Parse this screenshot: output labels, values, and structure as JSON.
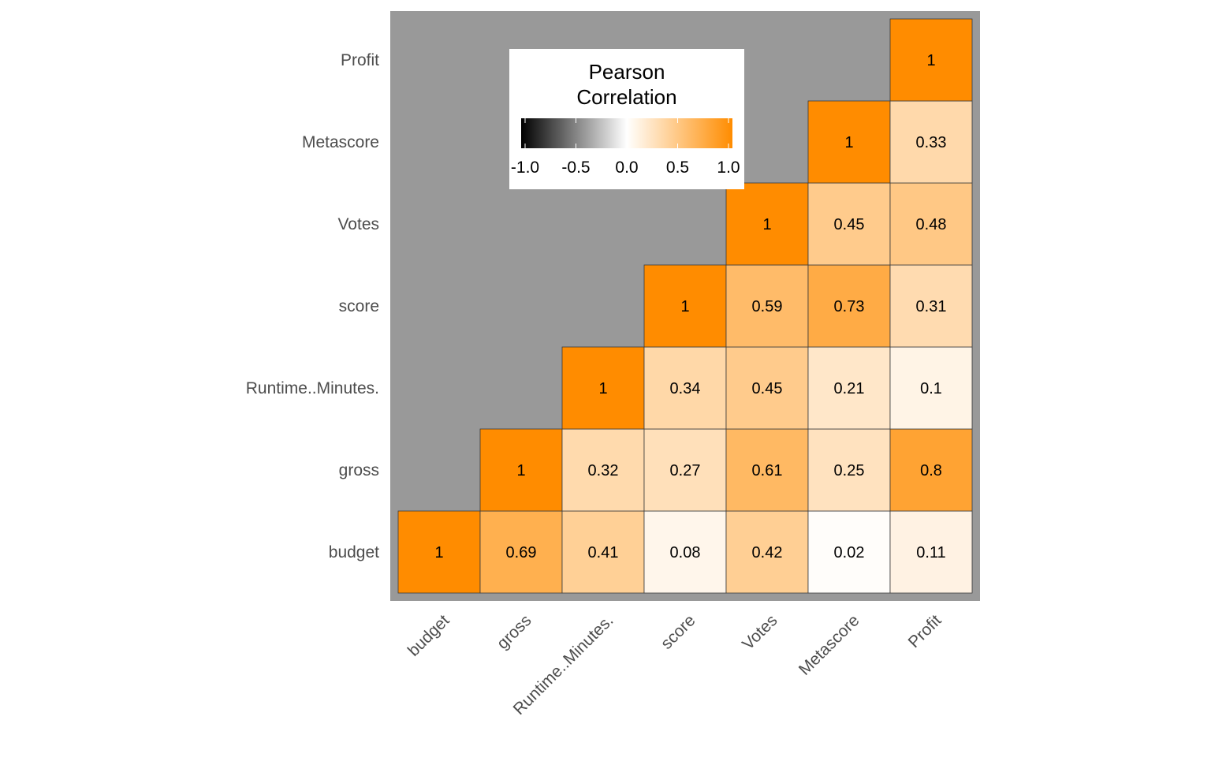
{
  "chart_data": {
    "type": "heatmap",
    "title": "",
    "xlabel": "",
    "ylabel": "",
    "variables": [
      "budget",
      "gross",
      "Runtime..Minutes.",
      "score",
      "Votes",
      "Metascore",
      "Profit"
    ],
    "cells": [
      {
        "x": "budget",
        "y": "budget",
        "value": 1,
        "label": "1"
      },
      {
        "x": "gross",
        "y": "budget",
        "value": 0.69,
        "label": "0.69"
      },
      {
        "x": "Runtime..Minutes.",
        "y": "budget",
        "value": 0.41,
        "label": "0.41"
      },
      {
        "x": "score",
        "y": "budget",
        "value": 0.08,
        "label": "0.08"
      },
      {
        "x": "Votes",
        "y": "budget",
        "value": 0.42,
        "label": "0.42"
      },
      {
        "x": "Metascore",
        "y": "budget",
        "value": 0.02,
        "label": "0.02"
      },
      {
        "x": "Profit",
        "y": "budget",
        "value": 0.11,
        "label": "0.11"
      },
      {
        "x": "gross",
        "y": "gross",
        "value": 1,
        "label": "1"
      },
      {
        "x": "Runtime..Minutes.",
        "y": "gross",
        "value": 0.32,
        "label": "0.32"
      },
      {
        "x": "score",
        "y": "gross",
        "value": 0.27,
        "label": "0.27"
      },
      {
        "x": "Votes",
        "y": "gross",
        "value": 0.61,
        "label": "0.61"
      },
      {
        "x": "Metascore",
        "y": "gross",
        "value": 0.25,
        "label": "0.25"
      },
      {
        "x": "Profit",
        "y": "gross",
        "value": 0.8,
        "label": "0.8"
      },
      {
        "x": "Runtime..Minutes.",
        "y": "Runtime..Minutes.",
        "value": 1,
        "label": "1"
      },
      {
        "x": "score",
        "y": "Runtime..Minutes.",
        "value": 0.34,
        "label": "0.34"
      },
      {
        "x": "Votes",
        "y": "Runtime..Minutes.",
        "value": 0.45,
        "label": "0.45"
      },
      {
        "x": "Metascore",
        "y": "Runtime..Minutes.",
        "value": 0.21,
        "label": "0.21"
      },
      {
        "x": "Profit",
        "y": "Runtime..Minutes.",
        "value": 0.1,
        "label": "0.1"
      },
      {
        "x": "score",
        "y": "score",
        "value": 1,
        "label": "1"
      },
      {
        "x": "Votes",
        "y": "score",
        "value": 0.59,
        "label": "0.59"
      },
      {
        "x": "Metascore",
        "y": "score",
        "value": 0.73,
        "label": "0.73"
      },
      {
        "x": "Profit",
        "y": "score",
        "value": 0.31,
        "label": "0.31"
      },
      {
        "x": "Votes",
        "y": "Votes",
        "value": 1,
        "label": "1"
      },
      {
        "x": "Metascore",
        "y": "Votes",
        "value": 0.45,
        "label": "0.45"
      },
      {
        "x": "Profit",
        "y": "Votes",
        "value": 0.48,
        "label": "0.48"
      },
      {
        "x": "Metascore",
        "y": "Metascore",
        "value": 1,
        "label": "1"
      },
      {
        "x": "Profit",
        "y": "Metascore",
        "value": 0.33,
        "label": "0.33"
      },
      {
        "x": "Profit",
        "y": "Profit",
        "value": 1,
        "label": "1"
      }
    ],
    "color_scale": {
      "low": "#000000",
      "mid": "#ffffff",
      "high": "#ff8c00",
      "limits": [
        -1,
        1
      ]
    },
    "panel_background": "#999999",
    "legend": {
      "title_lines": [
        "Pearson",
        "Correlation"
      ],
      "placement": "top-left",
      "ticks": [
        -1,
        -0.5,
        0,
        0.5,
        1
      ],
      "tick_labels": [
        "-1.0",
        "-0.5",
        "0.0",
        "0.5",
        "1.0"
      ]
    }
  }
}
